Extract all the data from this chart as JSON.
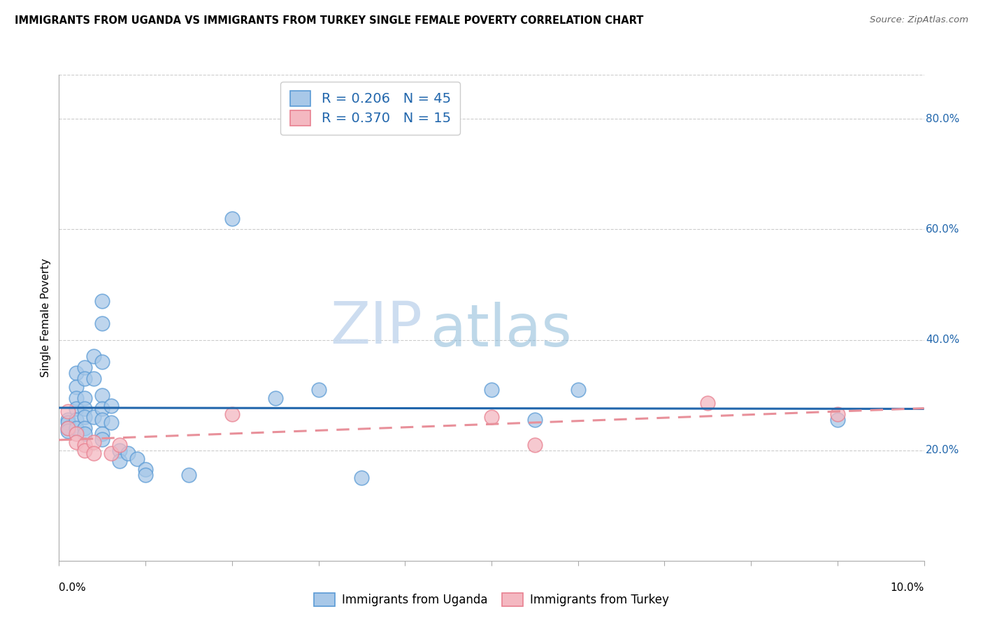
{
  "title": "IMMIGRANTS FROM UGANDA VS IMMIGRANTS FROM TURKEY SINGLE FEMALE POVERTY CORRELATION CHART",
  "source": "Source: ZipAtlas.com",
  "ylabel": "Single Female Poverty",
  "xlim": [
    0.0,
    0.1
  ],
  "ylim": [
    0.0,
    0.88
  ],
  "y_ticks_right": [
    0.2,
    0.4,
    0.6,
    0.8
  ],
  "y_tick_labels_right": [
    "20.0%",
    "40.0%",
    "60.0%",
    "80.0%"
  ],
  "x_ticks": [
    0.0,
    0.01,
    0.02,
    0.03,
    0.04,
    0.05,
    0.06,
    0.07,
    0.08,
    0.09,
    0.1
  ],
  "x_tick_labels": [
    "",
    "",
    "",
    "",
    "",
    "",
    "",
    "",
    "",
    "",
    ""
  ],
  "uganda_color": "#a8c8e8",
  "uganda_edge_color": "#5b9bd5",
  "turkey_color": "#f4b8c1",
  "turkey_edge_color": "#e88090",
  "R_uganda": 0.206,
  "N_uganda": 45,
  "R_turkey": 0.37,
  "N_turkey": 15,
  "legend_color": "#2166ac",
  "trend_uganda_color": "#2166ac",
  "trend_turkey_color": "#e8909a",
  "uganda_x": [
    0.001,
    0.001,
    0.001,
    0.001,
    0.002,
    0.002,
    0.002,
    0.002,
    0.002,
    0.002,
    0.003,
    0.003,
    0.003,
    0.003,
    0.003,
    0.003,
    0.003,
    0.004,
    0.004,
    0.004,
    0.005,
    0.005,
    0.005,
    0.005,
    0.005,
    0.005,
    0.005,
    0.005,
    0.006,
    0.006,
    0.007,
    0.007,
    0.008,
    0.009,
    0.01,
    0.01,
    0.015,
    0.02,
    0.025,
    0.03,
    0.035,
    0.05,
    0.055,
    0.06,
    0.09
  ],
  "uganda_y": [
    0.255,
    0.25,
    0.24,
    0.235,
    0.34,
    0.315,
    0.295,
    0.275,
    0.255,
    0.24,
    0.35,
    0.33,
    0.295,
    0.275,
    0.26,
    0.24,
    0.23,
    0.37,
    0.33,
    0.26,
    0.47,
    0.43,
    0.36,
    0.3,
    0.275,
    0.255,
    0.23,
    0.22,
    0.28,
    0.25,
    0.2,
    0.18,
    0.195,
    0.185,
    0.165,
    0.155,
    0.155,
    0.62,
    0.295,
    0.31,
    0.15,
    0.31,
    0.255,
    0.31,
    0.255
  ],
  "turkey_x": [
    0.001,
    0.001,
    0.002,
    0.002,
    0.003,
    0.003,
    0.004,
    0.004,
    0.006,
    0.007,
    0.02,
    0.05,
    0.055,
    0.075,
    0.09
  ],
  "turkey_y": [
    0.27,
    0.24,
    0.23,
    0.215,
    0.21,
    0.2,
    0.215,
    0.195,
    0.195,
    0.21,
    0.265,
    0.26,
    0.21,
    0.285,
    0.265
  ],
  "watermark_zip": "ZIP",
  "watermark_atlas": "atlas",
  "background_color": "#ffffff",
  "grid_color": "#cccccc"
}
